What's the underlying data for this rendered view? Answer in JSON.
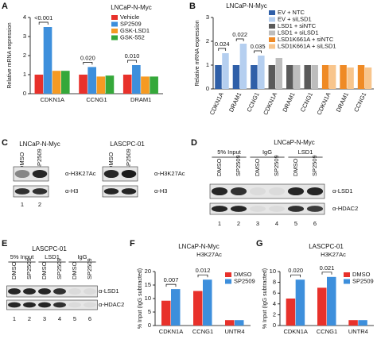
{
  "panel_labels": [
    "A",
    "B",
    "C",
    "D",
    "E",
    "F",
    "G"
  ],
  "chart_data": [
    {
      "type": "bar",
      "title": "LNCaP-N-Myc",
      "y_label": "Relative mRNA expression",
      "categories": [
        "CDKN1A",
        "CCNG1",
        "DRAM1"
      ],
      "series": [
        {
          "name": "Vehicle",
          "color": "#e8312b",
          "values": [
            1.0,
            1.0,
            1.0
          ]
        },
        {
          "name": "SP2509",
          "color": "#3d8fdc",
          "values": [
            3.5,
            1.4,
            1.5
          ]
        },
        {
          "name": "GSK-LSD1",
          "color": "#f59a23",
          "values": [
            1.2,
            0.9,
            0.9
          ]
        },
        {
          "name": "GSK-552",
          "color": "#35a83a",
          "values": [
            1.2,
            0.95,
            0.9
          ]
        }
      ],
      "ylim": [
        0,
        4
      ],
      "yticks": [
        0,
        1,
        2,
        3,
        4
      ],
      "annotations": [
        "<0.001",
        "0.020",
        "0.010"
      ],
      "legend": "upper right"
    },
    {
      "type": "bar",
      "title": "LNCaP-N-Myc",
      "y_label": "Relative mRNA expression",
      "categories": [
        "CDKN1A",
        "DRAM1",
        "CCNG1",
        "CDKN1A",
        "DRAM1",
        "CCNG1",
        "CDKN1A",
        "DRAM1",
        "CCNG1"
      ],
      "series": [
        {
          "name": "EV + NTC",
          "color": "#2f5fa8",
          "values": [
            1.0,
            1.0,
            1.0,
            null,
            null,
            null,
            null,
            null,
            null
          ]
        },
        {
          "name": "EV + siLSD1",
          "color": "#b5cff0",
          "values": [
            1.5,
            1.9,
            1.4,
            null,
            null,
            null,
            null,
            null,
            null
          ]
        },
        {
          "name": "LSD1 + siNTC",
          "color": "#5a5a5a",
          "values": [
            null,
            null,
            null,
            1.0,
            1.0,
            1.0,
            null,
            null,
            null
          ]
        },
        {
          "name": "LSD1 + siLSD1",
          "color": "#bdbdbd",
          "values": [
            null,
            null,
            null,
            1.3,
            1.0,
            1.0,
            null,
            null,
            null
          ]
        },
        {
          "name": "LSD1K661A + siNTC",
          "color": "#ef8a25",
          "values": [
            null,
            null,
            null,
            null,
            null,
            null,
            1.0,
            1.0,
            1.0
          ]
        },
        {
          "name": "LSD1K661A + siLSD1",
          "color": "#f8c58c",
          "values": [
            null,
            null,
            null,
            null,
            null,
            null,
            1.0,
            0.9,
            0.9
          ]
        }
      ],
      "ylim": [
        0,
        3
      ],
      "yticks": [
        0,
        1,
        2,
        3
      ],
      "annotations": [
        "0.024",
        "0.022",
        "0.035"
      ],
      "legend": "upper right"
    },
    {
      "type": "bar",
      "title": "LNCaP-N-Myc",
      "subtitle": "H3K27Ac",
      "y_label": "% Input (IgG subtracted)",
      "categories": [
        "CDKN1A",
        "CCNG1",
        "UNTR4"
      ],
      "series": [
        {
          "name": "DMSO",
          "color": "#e8312b",
          "values": [
            9.2,
            12.8,
            2.0
          ]
        },
        {
          "name": "SP2509",
          "color": "#3d8fdc",
          "values": [
            13.5,
            17.0,
            2.0
          ]
        }
      ],
      "ylim": [
        0,
        20
      ],
      "yticks": [
        0,
        5,
        10,
        15,
        20
      ],
      "annotations": [
        "0.007",
        "0.012"
      ],
      "legend": "upper right"
    },
    {
      "type": "bar",
      "title": "LASCPC-01",
      "subtitle": "H3K27Ac",
      "y_label": "% Input (IgG subtracted)",
      "categories": [
        "CDKN1A",
        "CCNG1",
        "UNTR4"
      ],
      "series": [
        {
          "name": "DMSO",
          "color": "#e8312b",
          "values": [
            5.0,
            7.0,
            1.0
          ]
        },
        {
          "name": "SP2509",
          "color": "#3d8fdc",
          "values": [
            8.5,
            9.0,
            1.0
          ]
        }
      ],
      "ylim": [
        0,
        10
      ],
      "yticks": [
        0,
        2,
        4,
        6,
        8,
        10
      ],
      "annotations": [
        "0.020",
        "0.021"
      ],
      "legend": "upper right"
    }
  ],
  "blots": [
    {
      "title": "LNCaP-N-Myc",
      "lanes": [
        "DMSO",
        "SP2509"
      ],
      "lane_numbers": [
        1,
        2
      ],
      "rows": [
        "α-H3K27Ac",
        "α-H3"
      ]
    },
    {
      "title": "LASCPC-01",
      "lanes": [
        "DMSO",
        "SP2509"
      ],
      "rows": [
        "α-H3K27Ac",
        "α-H3"
      ]
    },
    {
      "title": "LNCaP-N-Myc",
      "groups": [
        "5% Input",
        "IgG",
        "LSD1"
      ],
      "lanes": [
        "DMSO",
        "SP2509",
        "DMSO",
        "SP2509",
        "DMSO",
        "SP2509"
      ],
      "lane_numbers": [
        1,
        2,
        3,
        4,
        5,
        6
      ],
      "rows": [
        "α-LSD1",
        "α-HDAC2"
      ]
    },
    {
      "title": "LASCPC-01",
      "groups": [
        "5% Input",
        "LSD1",
        "IgG"
      ],
      "lanes": [
        "DMSO",
        "SP2509",
        "DMSO",
        "SP2509",
        "DMSO",
        "SP2509"
      ],
      "lane_numbers": [
        1,
        2,
        3,
        4,
        5,
        6
      ],
      "rows": [
        "α-LSD1",
        "α-HDAC2"
      ]
    }
  ]
}
